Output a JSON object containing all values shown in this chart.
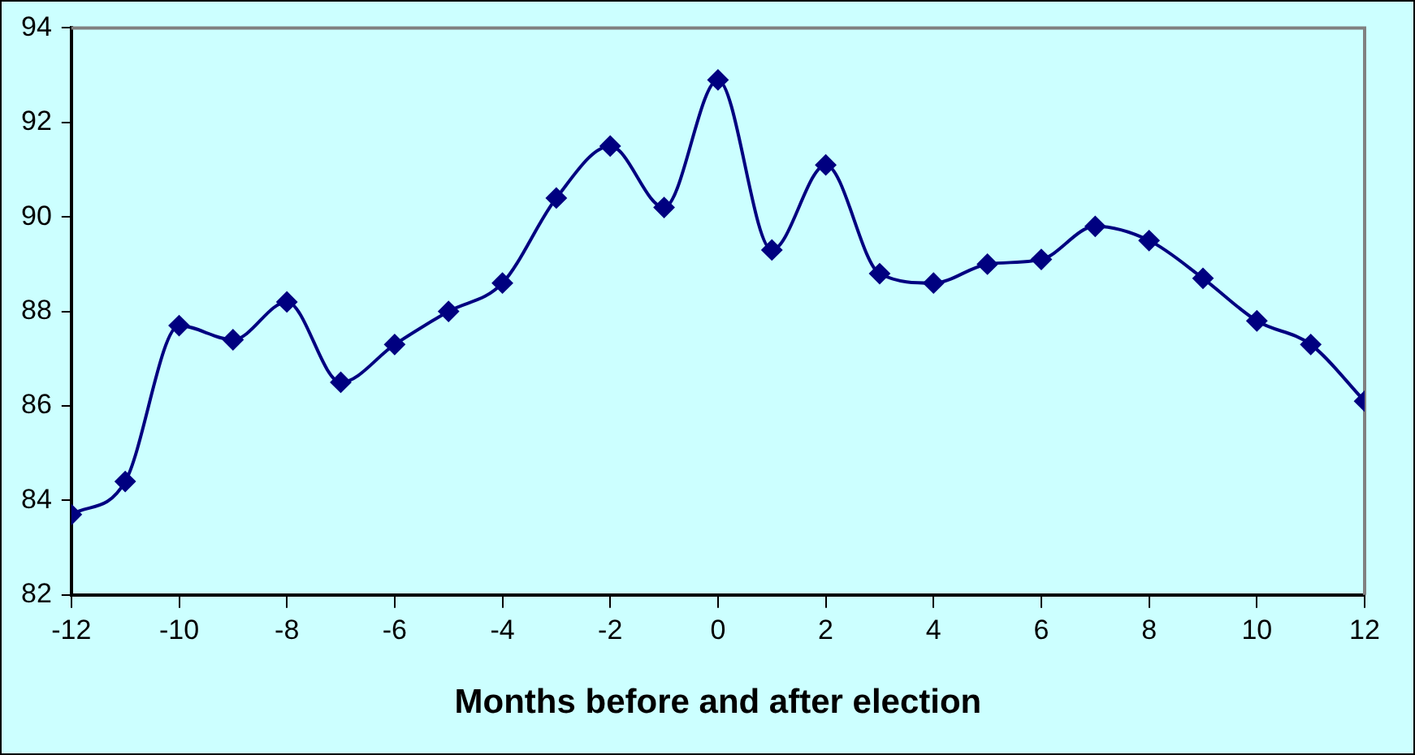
{
  "chart_data": {
    "type": "line",
    "xlabel": "Months before and after election",
    "x": [
      -12,
      -11,
      -10,
      -9,
      -8,
      -7,
      -6,
      -5,
      -4,
      -3,
      -2,
      -1,
      0,
      1,
      2,
      3,
      4,
      5,
      6,
      7,
      8,
      9,
      10,
      11,
      12
    ],
    "series": [
      {
        "color": "#000080",
        "values": [
          83.7,
          84.4,
          87.7,
          87.4,
          88.2,
          86.5,
          87.3,
          88.0,
          88.6,
          90.4,
          91.5,
          90.2,
          92.9,
          89.3,
          91.1,
          88.8,
          88.6,
          89.0,
          89.1,
          89.8,
          89.5,
          88.7,
          87.8,
          87.3,
          86.1
        ]
      }
    ],
    "xlim": [
      -12,
      12
    ],
    "xticks": [
      -12,
      -10,
      -8,
      -6,
      -4,
      -2,
      0,
      2,
      4,
      6,
      8,
      10,
      12
    ],
    "ylim": [
      82,
      94
    ],
    "yticks": [
      82,
      84,
      86,
      88,
      90,
      92,
      94
    ],
    "grid": false,
    "legend": false,
    "marker": "diamond",
    "line_style": "solid"
  }
}
